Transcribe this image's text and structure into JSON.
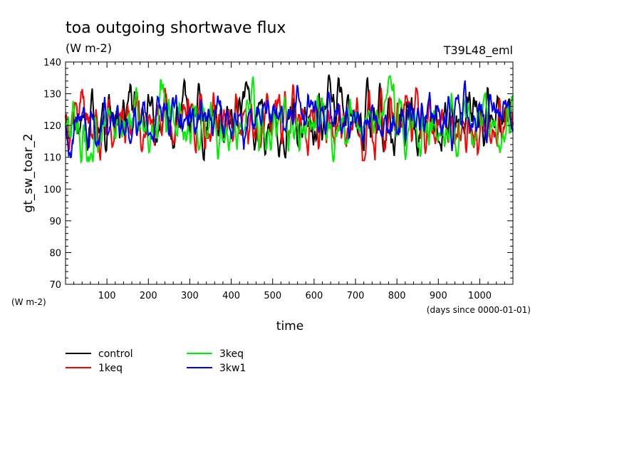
{
  "chart_data": {
    "type": "line",
    "title": "toa outgoing shortwave flux",
    "subtitle_units": "(W m-2)",
    "run_label": "T39L48_eml",
    "ylabel": "gt_sw_toar_2",
    "y_units_label": "(W m-2)",
    "xlabel": "time",
    "x_units_label": "(days since 0000-01-01)",
    "xlim": [
      0,
      1080
    ],
    "ylim": [
      70,
      140
    ],
    "x_ticks": [
      100,
      200,
      300,
      400,
      500,
      600,
      700,
      800,
      900,
      1000
    ],
    "y_ticks": [
      70,
      80,
      90,
      100,
      110,
      120,
      130,
      140
    ],
    "grid": false,
    "legend_position": "bottom-left",
    "series": [
      {
        "name": "control",
        "color": "#000000",
        "mean": 121,
        "amplitude": 5,
        "events": [
          [
            150,
            7
          ],
          [
            170,
            6
          ],
          [
            300,
            4
          ],
          [
            425,
            6
          ],
          [
            640,
            7
          ],
          [
            670,
            9
          ],
          [
            1000,
            4
          ],
          [
            1070,
            8
          ]
        ]
      },
      {
        "name": "1keq",
        "color": "#ff0000",
        "mean": 121,
        "amplitude": 5,
        "events": [
          [
            40,
            6
          ],
          [
            190,
            -6
          ],
          [
            500,
            6
          ],
          [
            720,
            -7
          ],
          [
            820,
            7
          ],
          [
            990,
            -6
          ],
          [
            1050,
            5
          ]
        ]
      },
      {
        "name": "3keq",
        "color": "#00ee00",
        "mean": 120.5,
        "amplitude": 5,
        "events": [
          [
            55,
            -7
          ],
          [
            232,
            10
          ],
          [
            380,
            -6
          ],
          [
            440,
            6
          ],
          [
            650,
            -8
          ],
          [
            780,
            9
          ],
          [
            1040,
            -5
          ]
        ]
      },
      {
        "name": "3kw1",
        "color": "#0000ff",
        "mean": 122,
        "amplitude": 4,
        "events": [
          [
            5,
            -9
          ],
          [
            230,
            4
          ],
          [
            480,
            4
          ],
          [
            560,
            4
          ],
          [
            960,
            6
          ],
          [
            1030,
            5
          ]
        ]
      }
    ]
  }
}
